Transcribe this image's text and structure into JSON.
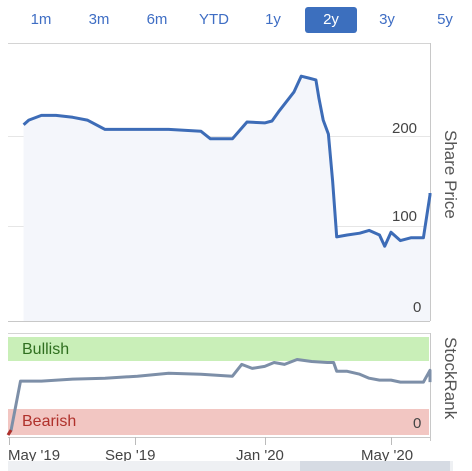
{
  "range_selector": {
    "options": [
      "1m",
      "3m",
      "6m",
      "YTD",
      "1y",
      "2y",
      "3y",
      "5y"
    ],
    "active": "2y"
  },
  "colors": {
    "price_line": "#3d6cb7",
    "price_fill": "#f4f6fb",
    "rank_line": "#7d8fa8",
    "bullish_band": "#c9efb8",
    "bearish_band": "#f2c6c2",
    "bullish_text": "#2f6f1f",
    "bearish_text": "#b0312b",
    "active_tab": "#3c6fbe"
  },
  "chart_data": [
    {
      "type": "area",
      "ylabel": "Share Price",
      "y_ticks": [
        "200",
        "100",
        "0"
      ],
      "y_tick_values": [
        200,
        100,
        0
      ],
      "ylim": [
        0,
        305
      ],
      "x_range": [
        "2019-05-15",
        "2020-06-15"
      ],
      "grid": true,
      "series": [
        {
          "x": [
            "2019-05-15",
            "2019-05-20",
            "2019-06-01",
            "2019-06-15",
            "2019-07-01",
            "2019-07-15",
            "2019-08-01",
            "2019-09-01",
            "2019-10-01",
            "2019-11-01",
            "2019-11-10",
            "2019-11-20",
            "2019-12-01",
            "2019-12-15",
            "2020-01-01",
            "2020-01-08",
            "2020-01-15",
            "2020-01-22",
            "2020-01-29",
            "2020-02-05",
            "2020-02-12",
            "2020-02-19",
            "2020-02-22",
            "2020-02-26",
            "2020-03-02",
            "2020-03-06",
            "2020-03-10",
            "2020-03-20",
            "2020-04-01",
            "2020-04-10",
            "2020-04-20",
            "2020-04-25",
            "2020-05-01",
            "2020-05-10",
            "2020-05-20",
            "2020-06-01",
            "2020-06-10",
            "2020-06-15"
          ],
          "y": [
            210,
            215,
            220,
            220,
            218,
            215,
            205,
            205,
            205,
            203,
            195,
            195,
            195,
            213,
            212,
            214,
            225,
            235,
            245,
            262,
            260,
            258,
            238,
            215,
            200,
            150,
            90,
            92,
            94,
            97,
            92,
            80,
            95,
            86,
            89,
            89,
            135,
            137
          ]
        }
      ]
    },
    {
      "type": "line",
      "ylabel": "StockRank",
      "y_ticks": [
        "0"
      ],
      "y_tick_values": [
        0
      ],
      "ylim": [
        0,
        100
      ],
      "bands": [
        "Bullish",
        "Bearish"
      ],
      "x_ticks": [
        "May '19",
        "Sep '19",
        "Jan '20",
        "May '20"
      ],
      "x_tick_dates": [
        "2019-05-01",
        "2019-09-01",
        "2020-01-01",
        "2020-05-01"
      ],
      "series": [
        {
          "x": [
            "2019-04-25",
            "2019-05-03",
            "2019-05-12",
            "2019-06-01",
            "2019-07-01",
            "2019-08-01",
            "2019-09-01",
            "2019-10-01",
            "2019-11-01",
            "2019-12-01",
            "2019-12-10",
            "2019-12-20",
            "2020-01-01",
            "2020-01-10",
            "2020-01-20",
            "2020-02-01",
            "2020-02-15",
            "2020-03-01",
            "2020-03-07",
            "2020-03-10",
            "2020-03-20",
            "2020-04-01",
            "2020-04-10",
            "2020-04-20",
            "2020-05-01",
            "2020-05-10",
            "2020-05-20",
            "2020-06-01",
            "2020-06-08",
            "2020-06-15"
          ],
          "y": [
            0,
            5,
            55,
            55,
            57,
            58,
            60,
            63,
            62,
            60,
            72,
            68,
            70,
            74,
            72,
            77,
            75,
            74,
            74,
            65,
            65,
            62,
            58,
            56,
            56,
            54,
            54,
            54,
            66,
            54
          ]
        }
      ]
    }
  ]
}
